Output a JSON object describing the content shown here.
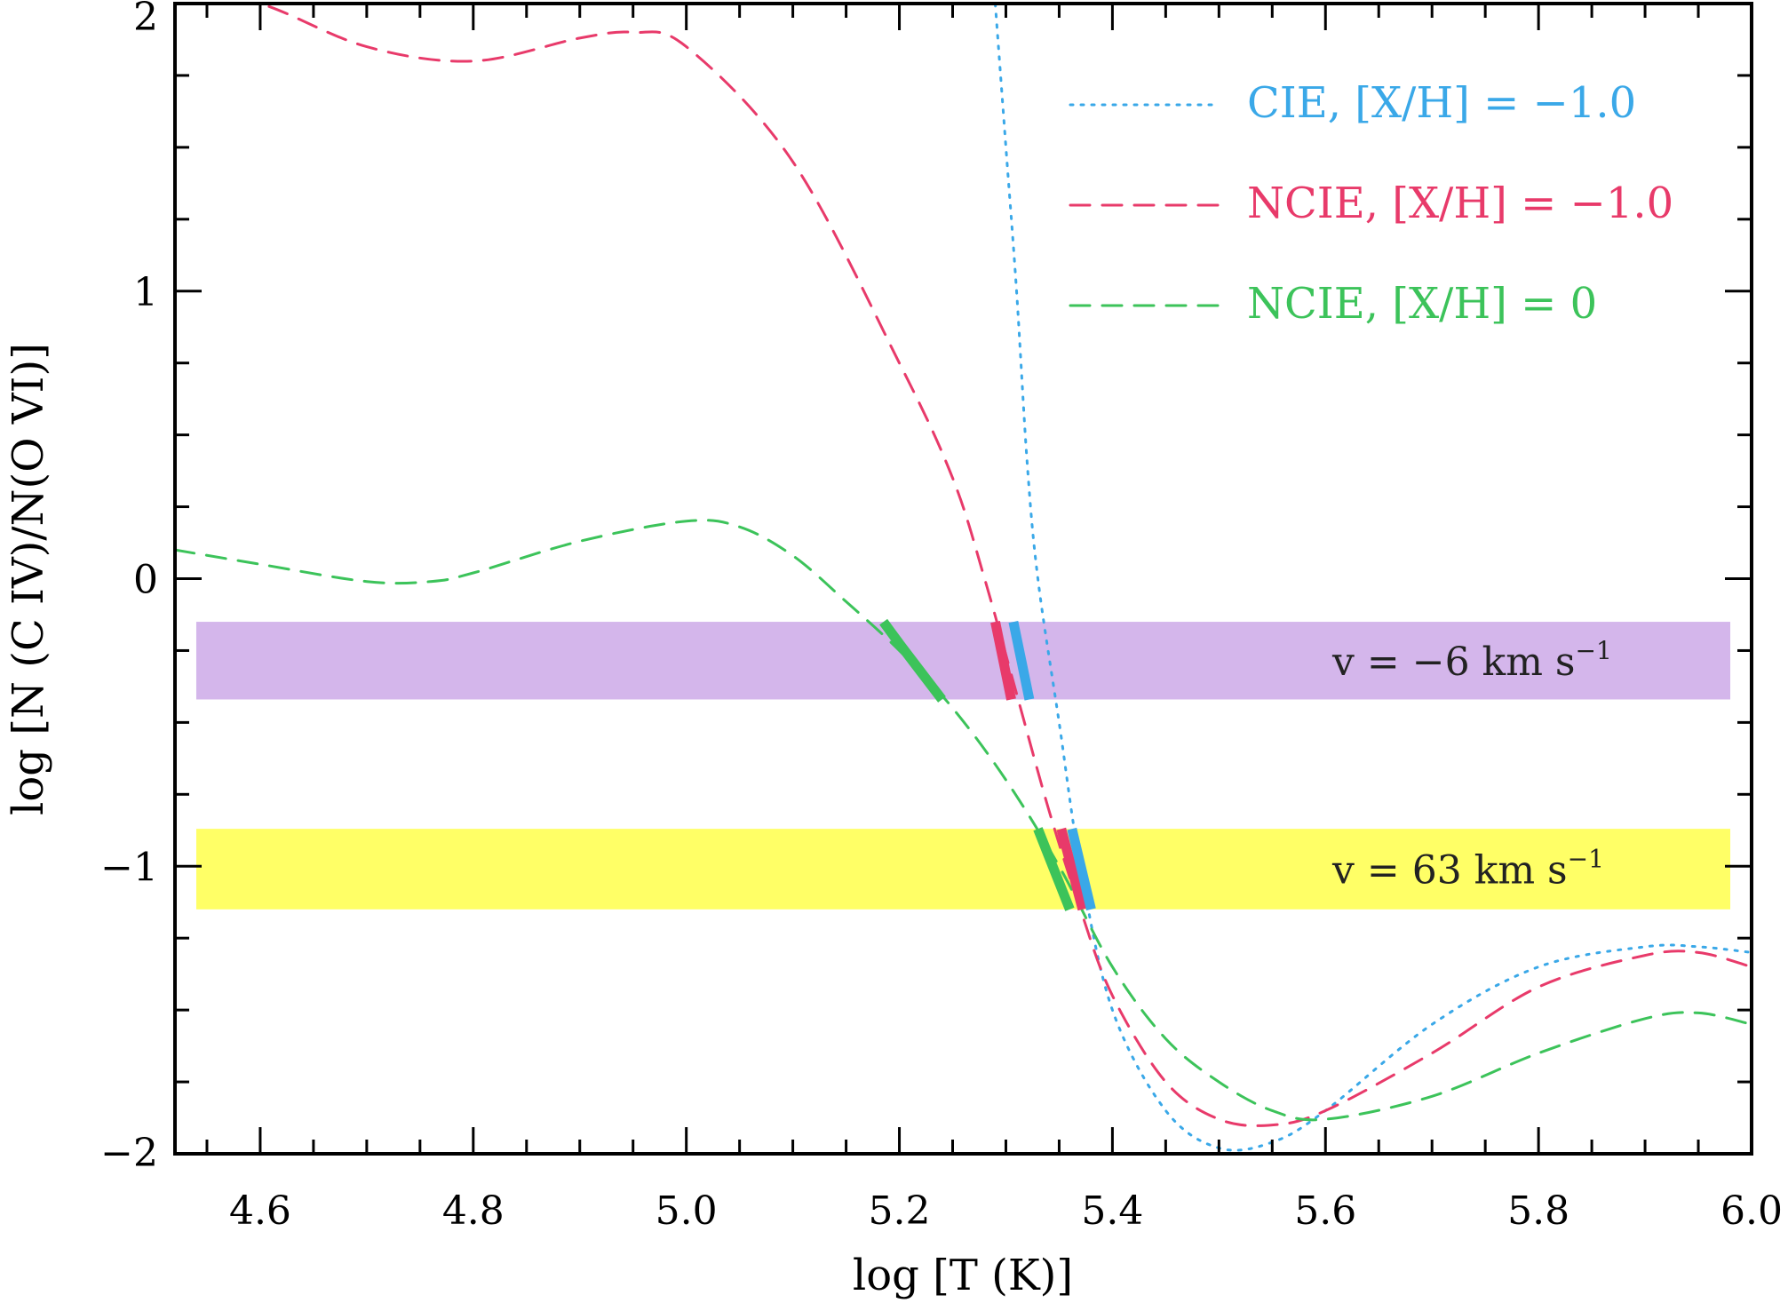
{
  "chart_data": {
    "type": "line",
    "xlabel": "log [T (K)]",
    "ylabel": "log [N (C IV)/N(O VI)]",
    "xlim": [
      4.52,
      6.0
    ],
    "ylim": [
      -2.0,
      2.0
    ],
    "x_ticks": [
      "4.6",
      "4.8",
      "5.0",
      "5.2",
      "5.4",
      "5.6",
      "5.8",
      "6.0"
    ],
    "y_ticks": [
      "2",
      "1",
      "0",
      "−1",
      "−2"
    ],
    "grid": false,
    "legend_position": "top-right",
    "series": [
      {
        "name": "CIE, [X/H] = −1.0",
        "style": "dotted",
        "color": "#3AA8E8",
        "points": [
          [
            5.29,
            2.0
          ],
          [
            5.3,
            1.5
          ],
          [
            5.31,
            1.0
          ],
          [
            5.32,
            0.4
          ],
          [
            5.33,
            0.0
          ],
          [
            5.35,
            -0.5
          ],
          [
            5.37,
            -1.0
          ],
          [
            5.4,
            -1.5
          ],
          [
            5.45,
            -1.85
          ],
          [
            5.5,
            -1.98
          ],
          [
            5.55,
            -1.96
          ],
          [
            5.6,
            -1.85
          ],
          [
            5.7,
            -1.55
          ],
          [
            5.8,
            -1.35
          ],
          [
            5.9,
            -1.28
          ],
          [
            5.95,
            -1.28
          ],
          [
            6.0,
            -1.3
          ]
        ]
      },
      {
        "name": "NCIE, [X/H] = −1.0",
        "style": "dashed",
        "color": "#E83A6A",
        "points": [
          [
            4.52,
            2.05
          ],
          [
            4.6,
            2.0
          ],
          [
            4.7,
            1.85
          ],
          [
            4.8,
            1.8
          ],
          [
            4.9,
            1.88
          ],
          [
            4.95,
            1.9
          ],
          [
            5.0,
            1.85
          ],
          [
            5.1,
            1.45
          ],
          [
            5.2,
            0.75
          ],
          [
            5.25,
            0.35
          ],
          [
            5.28,
            0.0
          ],
          [
            5.31,
            -0.4
          ],
          [
            5.34,
            -0.8
          ],
          [
            5.37,
            -1.15
          ],
          [
            5.4,
            -1.45
          ],
          [
            5.45,
            -1.75
          ],
          [
            5.5,
            -1.88
          ],
          [
            5.55,
            -1.9
          ],
          [
            5.6,
            -1.85
          ],
          [
            5.7,
            -1.65
          ],
          [
            5.8,
            -1.42
          ],
          [
            5.9,
            -1.31
          ],
          [
            5.95,
            -1.3
          ],
          [
            6.0,
            -1.35
          ]
        ]
      },
      {
        "name": "NCIE, [X/H] = 0",
        "style": "dashed",
        "color": "#3CC35A",
        "points": [
          [
            4.52,
            0.1
          ],
          [
            4.6,
            0.05
          ],
          [
            4.7,
            -0.01
          ],
          [
            4.76,
            -0.01
          ],
          [
            4.8,
            0.02
          ],
          [
            4.9,
            0.13
          ],
          [
            5.0,
            0.2
          ],
          [
            5.05,
            0.18
          ],
          [
            5.1,
            0.08
          ],
          [
            5.15,
            -0.08
          ],
          [
            5.2,
            -0.25
          ],
          [
            5.25,
            -0.45
          ],
          [
            5.3,
            -0.7
          ],
          [
            5.35,
            -1.0
          ],
          [
            5.4,
            -1.35
          ],
          [
            5.45,
            -1.6
          ],
          [
            5.5,
            -1.75
          ],
          [
            5.55,
            -1.85
          ],
          [
            5.6,
            -1.88
          ],
          [
            5.7,
            -1.8
          ],
          [
            5.8,
            -1.65
          ],
          [
            5.9,
            -1.53
          ],
          [
            5.95,
            -1.51
          ],
          [
            6.0,
            -1.55
          ]
        ]
      }
    ],
    "bands": [
      {
        "label": "v = −6 km s",
        "superscript": "−1",
        "ymin": -0.42,
        "ymax": -0.15,
        "color": "#D4B6EB"
      },
      {
        "label": "v = 63 km s",
        "superscript": "−1",
        "ymin": -1.15,
        "ymax": -0.87,
        "color": "#FFFF66"
      }
    ],
    "highlights": [
      {
        "color": "#3CC35A",
        "points": [
          [
            5.185,
            -0.15
          ],
          [
            5.205,
            -0.25
          ],
          [
            5.24,
            -0.42
          ]
        ]
      },
      {
        "color": "#E83A6A",
        "points": [
          [
            5.29,
            -0.15
          ],
          [
            5.305,
            -0.42
          ]
        ]
      },
      {
        "color": "#3AA8E8",
        "points": [
          [
            5.307,
            -0.15
          ],
          [
            5.322,
            -0.42
          ]
        ]
      },
      {
        "color": "#3CC35A",
        "points": [
          [
            5.33,
            -0.87
          ],
          [
            5.36,
            -1.15
          ]
        ]
      },
      {
        "color": "#E83A6A",
        "points": [
          [
            5.352,
            -0.87
          ],
          [
            5.372,
            -1.15
          ]
        ]
      },
      {
        "color": "#3AA8E8",
        "points": [
          [
            5.362,
            -0.87
          ],
          [
            5.38,
            -1.15
          ]
        ]
      }
    ]
  }
}
